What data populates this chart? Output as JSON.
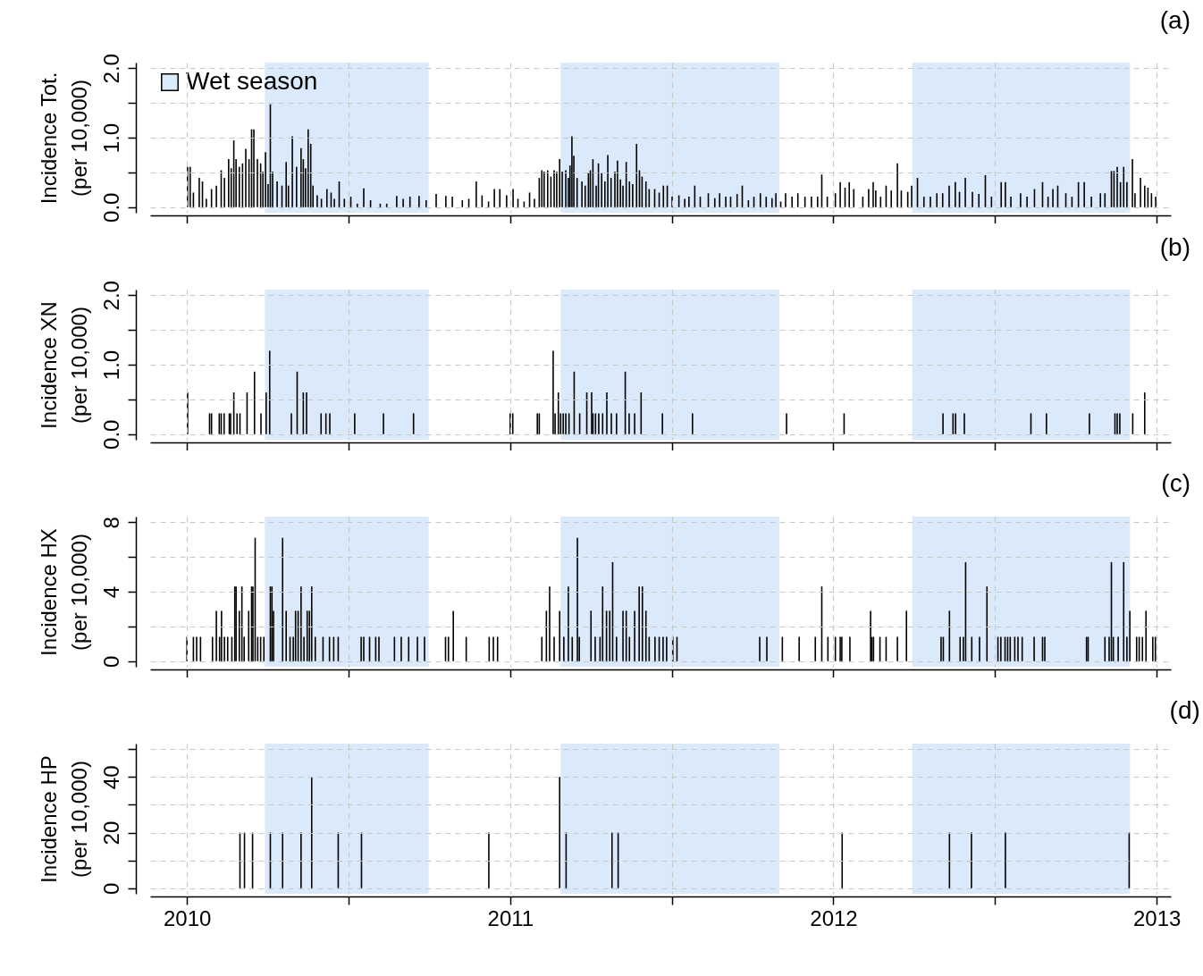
{
  "chart_data": [
    {
      "type": "bar",
      "title": "(a)",
      "ylabel": "Incidence Tot.\n(per 10,000)",
      "xlim": [
        2009.9,
        2013.03
      ],
      "xticks": [
        2010,
        {
          "value": 2010.5,
          "label": null
        },
        2011,
        {
          "value": 2011.5,
          "label": null
        },
        2012,
        {
          "value": 2012.5,
          "label": null
        },
        2013
      ],
      "ylim": [
        -0.08,
        2.08
      ],
      "yticks": [
        {
          "value": 0,
          "label": "0.0"
        },
        {
          "value": 0.5,
          "label": null
        },
        {
          "value": 1,
          "label": "1.0"
        },
        {
          "value": 1.5,
          "label": null
        },
        {
          "value": 2,
          "label": "2.0"
        }
      ],
      "grid": true,
      "tick_labels": "y",
      "legend": "top left",
      "bands": [
        {
          "axis": "x",
          "from": 2010.241,
          "to": 2010.748,
          "label": "Wet season",
          "color": "#dbeafa"
        },
        {
          "axis": "x",
          "from": 2011.156,
          "to": 2011.833,
          "color": "#dbeafa"
        },
        {
          "axis": "x",
          "from": 2012.244,
          "to": 2012.918,
          "color": "#dbeafa"
        }
      ],
      "x": [
        2010.002,
        2010.01,
        2010.02,
        2010.038,
        2010.048,
        2010.06,
        2010.076,
        2010.091,
        2010.106,
        2010.116,
        2010.129,
        2010.137,
        2010.145,
        2010.152,
        2010.162,
        2010.172,
        2010.182,
        2010.192,
        2010.2,
        2010.207,
        2010.218,
        2010.228,
        2010.235,
        2010.243,
        2010.251,
        2010.258,
        2010.265,
        2010.279,
        2010.294,
        2010.307,
        2010.314,
        2010.326,
        2010.339,
        2010.353,
        2010.36,
        2010.367,
        2010.375,
        2010.383,
        2010.39,
        2010.403,
        2010.416,
        2010.433,
        2010.446,
        2010.456,
        2010.471,
        2010.487,
        2010.507,
        2010.527,
        2010.547,
        2010.568,
        2010.598,
        2010.618,
        2010.649,
        2010.669,
        2010.69,
        2010.718,
        2010.74,
        2010.771,
        2010.801,
        2010.821,
        2010.852,
        2010.872,
        2010.895,
        2010.913,
        2010.933,
        2010.951,
        2010.968,
        2010.989,
        2011.009,
        2011.024,
        2011.043,
        2011.06,
        2011.075,
        2011.09,
        2011.098,
        2011.105,
        2011.116,
        2011.126,
        2011.136,
        2011.144,
        2011.153,
        2011.161,
        2011.172,
        2011.18,
        2011.185,
        2011.191,
        2011.197,
        2011.207,
        2011.222,
        2011.232,
        2011.242,
        2011.248,
        2011.256,
        2011.266,
        2011.273,
        2011.283,
        2011.293,
        2011.302,
        2011.312,
        2011.324,
        2011.332,
        2011.341,
        2011.349,
        2011.359,
        2011.369,
        2011.379,
        2011.391,
        2011.4,
        2011.408,
        2011.42,
        2011.43,
        2011.447,
        2011.461,
        2011.474,
        2011.486,
        2011.501,
        2011.522,
        2011.54,
        2011.553,
        2011.571,
        2011.588,
        2011.613,
        2011.633,
        2011.648,
        2011.667,
        2011.682,
        2011.702,
        2011.718,
        2011.737,
        2011.754,
        2011.774,
        2011.792,
        2011.81,
        2011.822,
        2011.837,
        2011.852,
        2011.872,
        2011.89,
        2011.912,
        2011.932,
        2011.951,
        2011.964,
        2011.981,
        2012.006,
        2012.021,
        2012.036,
        2012.049,
        2012.063,
        2012.091,
        2012.109,
        2012.123,
        2012.131,
        2012.146,
        2012.163,
        2012.179,
        2012.198,
        2012.21,
        2012.23,
        2012.242,
        2012.26,
        2012.28,
        2012.3,
        2012.32,
        2012.338,
        2012.358,
        2012.377,
        2012.39,
        2012.408,
        2012.43,
        2012.45,
        2012.47,
        2012.489,
        2012.519,
        2012.532,
        2012.549,
        2012.579,
        2012.599,
        2012.622,
        2012.647,
        2012.664,
        2012.679,
        2012.694,
        2012.719,
        2012.738,
        2012.758,
        2012.776,
        2012.798,
        2012.826,
        2012.84,
        2012.86,
        2012.868,
        2012.878,
        2012.888,
        2012.898,
        2012.908,
        2012.925,
        2012.933,
        2012.95,
        2012.963,
        2012.973,
        2012.984,
        2012.997
      ],
      "series": [
        {
          "color": "#000000",
          "values": [
            0.58,
            0.58,
            0.21,
            0.42,
            0.37,
            0.12,
            0.26,
            0.31,
            0.53,
            0.42,
            0.69,
            0.56,
            0.96,
            0.69,
            0.58,
            0.63,
            0.84,
            0.69,
            1.12,
            1.12,
            0.69,
            0.63,
            0.51,
            0.79,
            0.33,
            1.48,
            0.51,
            0.37,
            0.31,
            0.65,
            0.31,
            1.02,
            0.58,
            0.85,
            0.69,
            0.56,
            1.12,
            0.91,
            0.31,
            0.17,
            0.12,
            0.26,
            0.21,
            0.12,
            0.37,
            0.12,
            0.15,
            0.05,
            0.27,
            0.1,
            0.05,
            0.05,
            0.16,
            0.12,
            0.15,
            0.16,
            0.1,
            0.19,
            0.16,
            0.15,
            0.1,
            0.12,
            0.37,
            0.17,
            0.08,
            0.26,
            0.26,
            0.17,
            0.26,
            0.12,
            0.08,
            0.21,
            0.12,
            0.42,
            0.53,
            0.51,
            0.53,
            0.44,
            0.53,
            0.51,
            0.69,
            0.51,
            0.53,
            0.42,
            0.6,
            1.02,
            0.74,
            0.42,
            0.37,
            0.31,
            0.49,
            0.53,
            0.69,
            0.31,
            0.63,
            0.49,
            0.37,
            0.75,
            0.42,
            0.51,
            0.67,
            0.4,
            0.31,
            0.65,
            0.37,
            0.33,
            0.91,
            0.53,
            0.44,
            0.37,
            0.26,
            0.26,
            0.21,
            0.31,
            0.31,
            0.15,
            0.17,
            0.12,
            0.15,
            0.31,
            0.15,
            0.2,
            0.13,
            0.2,
            0.15,
            0.15,
            0.19,
            0.31,
            0.1,
            0.15,
            0.2,
            0.15,
            0.13,
            0.2,
            0.08,
            0.2,
            0.15,
            0.2,
            0.15,
            0.15,
            0.15,
            0.47,
            0.15,
            0.2,
            0.36,
            0.28,
            0.36,
            0.26,
            0.15,
            0.26,
            0.36,
            0.24,
            0.15,
            0.31,
            0.24,
            0.63,
            0.24,
            0.22,
            0.31,
            0.42,
            0.15,
            0.15,
            0.2,
            0.2,
            0.31,
            0.36,
            0.22,
            0.42,
            0.22,
            0.19,
            0.46,
            0.15,
            0.36,
            0.36,
            0.15,
            0.2,
            0.15,
            0.26,
            0.36,
            0.15,
            0.26,
            0.31,
            0.2,
            0.15,
            0.36,
            0.36,
            0.15,
            0.2,
            0.2,
            0.52,
            0.52,
            0.58,
            0.36,
            0.58,
            0.36,
            0.69,
            0.2,
            0.42,
            0.31,
            0.28,
            0.2,
            0.15
          ]
        }
      ]
    },
    {
      "type": "bar",
      "title": "(b)",
      "ylabel": "Incidence XN\n(per 10,000)",
      "xlim": [
        2009.9,
        2013.03
      ],
      "xticks": [
        2010,
        {
          "value": 2010.5,
          "label": null
        },
        2011,
        {
          "value": 2011.5,
          "label": null
        },
        2012,
        {
          "value": 2012.5,
          "label": null
        },
        2013
      ],
      "ylim": [
        -0.08,
        2.08
      ],
      "yticks": [
        {
          "value": 0,
          "label": "0.0"
        },
        {
          "value": 0.5,
          "label": null
        },
        {
          "value": 1,
          "label": "1.0"
        },
        {
          "value": 1.5,
          "label": null
        },
        {
          "value": 2,
          "label": "2.0"
        }
      ],
      "grid": true,
      "tick_labels": "y",
      "bands": [
        {
          "axis": "x",
          "from": 2010.241,
          "to": 2010.748,
          "color": "#dbeafa"
        },
        {
          "axis": "x",
          "from": 2011.156,
          "to": 2011.833,
          "color": "#dbeafa"
        },
        {
          "axis": "x",
          "from": 2012.244,
          "to": 2012.918,
          "color": "#dbeafa"
        }
      ],
      "x": [
        2010.002,
        2010.07,
        2010.076,
        2010.1,
        2010.106,
        2010.115,
        2010.131,
        2010.135,
        2010.145,
        2010.155,
        2010.164,
        2010.186,
        2010.209,
        2010.229,
        2010.245,
        2010.256,
        2010.323,
        2010.341,
        2010.36,
        2010.37,
        2010.415,
        2010.43,
        2010.442,
        2010.519,
        2010.608,
        2010.701,
        2011.0,
        2011.008,
        2011.084,
        2011.09,
        2011.133,
        2011.139,
        2011.149,
        2011.156,
        2011.164,
        2011.172,
        2011.182,
        2011.198,
        2011.215,
        2011.237,
        2011.252,
        2011.256,
        2011.264,
        2011.274,
        2011.286,
        2011.299,
        2011.313,
        2011.329,
        2011.356,
        2011.368,
        2011.385,
        2011.405,
        2011.471,
        2011.564,
        2011.855,
        2012.033,
        2012.339,
        2012.37,
        2012.378,
        2012.405,
        2012.611,
        2012.659,
        2012.792,
        2012.871,
        2012.878,
        2012.886,
        2012.926,
        2012.963
      ],
      "series": [
        {
          "color": "#000000",
          "values": [
            0.6,
            0.3,
            0.3,
            0.3,
            0.3,
            0.3,
            0.3,
            0.3,
            0.6,
            0.3,
            0.3,
            0.6,
            0.9,
            0.3,
            0.6,
            1.2,
            0.3,
            0.9,
            0.6,
            0.6,
            0.3,
            0.3,
            0.3,
            0.3,
            0.3,
            0.3,
            0.3,
            0.3,
            0.3,
            0.3,
            1.2,
            0.3,
            0.6,
            0.3,
            0.3,
            0.3,
            0.3,
            0.9,
            0.3,
            0.6,
            0.6,
            0.3,
            0.3,
            0.3,
            0.3,
            0.6,
            0.3,
            0.3,
            0.9,
            0.3,
            0.3,
            0.6,
            0.3,
            0.3,
            0.3,
            0.3,
            0.3,
            0.3,
            0.3,
            0.3,
            0.3,
            0.3,
            0.3,
            0.3,
            0.3,
            0.3,
            0.3,
            0.6
          ]
        }
      ]
    },
    {
      "type": "bar",
      "title": "(c)",
      "ylabel": "Incidence HX\n(per 10,000)",
      "xlim": [
        2009.9,
        2013.03
      ],
      "xticks": [
        2010,
        {
          "value": 2010.5,
          "label": null
        },
        2011,
        {
          "value": 2011.5,
          "label": null
        },
        2012,
        {
          "value": 2012.5,
          "label": null
        },
        2013
      ],
      "ylim": [
        -0.32,
        8.32
      ],
      "yticks": [
        0,
        {
          "value": 2,
          "label": null
        },
        4,
        {
          "value": 6,
          "label": null
        },
        8
      ],
      "grid": true,
      "tick_labels": "y",
      "bands": [
        {
          "axis": "x",
          "from": 2010.241,
          "to": 2010.748,
          "color": "#dbeafa"
        },
        {
          "axis": "x",
          "from": 2011.156,
          "to": 2011.833,
          "color": "#dbeafa"
        },
        {
          "axis": "x",
          "from": 2012.244,
          "to": 2012.918,
          "color": "#dbeafa"
        }
      ],
      "x": [
        2010.0,
        2010.02,
        2010.03,
        2010.042,
        2010.079,
        2010.091,
        2010.101,
        2010.107,
        2010.116,
        2010.126,
        2010.139,
        2010.148,
        2010.152,
        2010.162,
        2010.17,
        2010.177,
        2010.191,
        2010.2,
        2010.204,
        2010.211,
        2010.219,
        2010.228,
        2010.238,
        2010.258,
        2010.263,
        2010.268,
        2010.296,
        2010.307,
        2010.319,
        2010.329,
        2010.336,
        2010.344,
        2010.353,
        2010.362,
        2010.372,
        2010.379,
        2010.386,
        2010.397,
        2010.421,
        2010.441,
        2010.454,
        2010.468,
        2010.539,
        2010.547,
        2010.565,
        2010.584,
        2010.594,
        2010.642,
        2010.663,
        2010.686,
        2010.713,
        2010.735,
        2010.8,
        2010.809,
        2010.824,
        2010.864,
        2010.935,
        2010.948,
        2010.961,
        2011.098,
        2011.112,
        2011.122,
        2011.136,
        2011.153,
        2011.166,
        2011.18,
        2011.192,
        2011.208,
        2011.214,
        2011.25,
        2011.263,
        2011.278,
        2011.286,
        2011.298,
        2011.308,
        2011.317,
        2011.329,
        2011.349,
        2011.359,
        2011.369,
        2011.385,
        2011.399,
        2011.409,
        2011.42,
        2011.43,
        2011.448,
        2011.461,
        2011.473,
        2011.484,
        2011.503,
        2011.516,
        2011.772,
        2011.794,
        2011.842,
        2011.894,
        2011.944,
        2011.964,
        2011.983,
        2012.006,
        2012.021,
        2012.026,
        2012.051,
        2012.115,
        2012.119,
        2012.124,
        2012.144,
        2012.163,
        2012.198,
        2012.226,
        2012.333,
        2012.34,
        2012.359,
        2012.392,
        2012.402,
        2012.409,
        2012.428,
        2012.452,
        2012.475,
        2012.509,
        2012.518,
        2012.531,
        2012.539,
        2012.547,
        2012.561,
        2012.571,
        2012.584,
        2012.621,
        2012.647,
        2012.654,
        2012.783,
        2012.788,
        2012.84,
        2012.853,
        2012.86,
        2012.866,
        2012.881,
        2012.898,
        2012.908,
        2012.917,
        2012.938,
        2012.946,
        2012.956,
        2012.967,
        2012.988,
        2012.996
      ],
      "series": [
        {
          "color": "#000000",
          "values": [
            1.4,
            1.4,
            1.4,
            1.4,
            1.4,
            2.9,
            1.4,
            2.9,
            1.4,
            1.4,
            1.4,
            4.3,
            4.3,
            2.9,
            4.3,
            1.4,
            2.9,
            4.3,
            4.3,
            7.1,
            1.4,
            1.4,
            1.4,
            4.3,
            4.3,
            2.9,
            7.1,
            2.9,
            1.4,
            1.4,
            2.9,
            2.9,
            4.3,
            1.4,
            2.9,
            2.9,
            4.3,
            1.4,
            1.4,
            1.4,
            1.4,
            1.4,
            1.4,
            1.4,
            1.4,
            1.4,
            1.4,
            1.4,
            1.4,
            1.4,
            1.4,
            1.4,
            1.4,
            1.4,
            2.9,
            1.4,
            1.4,
            1.4,
            1.4,
            1.4,
            2.9,
            4.3,
            1.4,
            2.9,
            1.4,
            4.3,
            1.4,
            7.1,
            1.4,
            2.9,
            1.4,
            1.4,
            4.3,
            2.9,
            2.9,
            5.7,
            1.4,
            2.9,
            2.9,
            1.4,
            2.9,
            4.3,
            4.3,
            2.9,
            1.4,
            1.4,
            1.4,
            1.4,
            1.4,
            1.4,
            1.4,
            1.4,
            1.4,
            1.4,
            1.4,
            1.4,
            4.3,
            1.4,
            1.4,
            1.4,
            1.4,
            1.4,
            2.9,
            1.4,
            1.4,
            1.4,
            1.4,
            1.4,
            2.9,
            1.4,
            1.4,
            2.9,
            1.4,
            1.4,
            5.7,
            1.4,
            1.4,
            4.3,
            1.4,
            1.4,
            1.4,
            1.4,
            1.4,
            1.4,
            1.4,
            1.4,
            1.4,
            1.4,
            1.4,
            1.4,
            1.4,
            1.4,
            1.4,
            5.7,
            1.4,
            1.4,
            5.7,
            1.4,
            2.9,
            1.4,
            1.4,
            1.4,
            2.9,
            1.4,
            1.4
          ]
        }
      ]
    },
    {
      "type": "bar",
      "title": "(d)",
      "ylabel": "Incidence HP\n(per 10,000)",
      "xlim": [
        2009.9,
        2013.03
      ],
      "xticks": [
        2010,
        {
          "value": 2010.5,
          "label": null
        },
        2011,
        {
          "value": 2011.5,
          "label": null
        },
        2012,
        {
          "value": 2012.5,
          "label": null
        },
        2013
      ],
      "ylim": [
        -2,
        52
      ],
      "yticks": [
        0,
        {
          "value": 10,
          "label": null
        },
        20,
        {
          "value": 30,
          "label": null
        },
        40,
        {
          "value": 50,
          "label": null
        }
      ],
      "grid": true,
      "bands": [
        {
          "axis": "x",
          "from": 2010.241,
          "to": 2010.748,
          "color": "#dbeafa"
        },
        {
          "axis": "x",
          "from": 2011.156,
          "to": 2011.833,
          "color": "#dbeafa"
        },
        {
          "axis": "x",
          "from": 2012.244,
          "to": 2012.918,
          "color": "#dbeafa"
        }
      ],
      "x": [
        2010.164,
        2010.178,
        2010.203,
        2010.258,
        2010.296,
        2010.353,
        2010.386,
        2010.468,
        2010.54,
        2010.934,
        2011.153,
        2011.173,
        2011.315,
        2011.334,
        2012.027,
        2012.359,
        2012.427,
        2012.532,
        2012.915
      ],
      "series": [
        {
          "color": "#000000",
          "values": [
            20,
            20,
            20,
            20,
            20,
            20,
            40,
            20,
            20,
            20,
            40,
            20,
            20,
            20,
            20,
            20,
            20,
            20,
            20
          ]
        }
      ]
    }
  ]
}
